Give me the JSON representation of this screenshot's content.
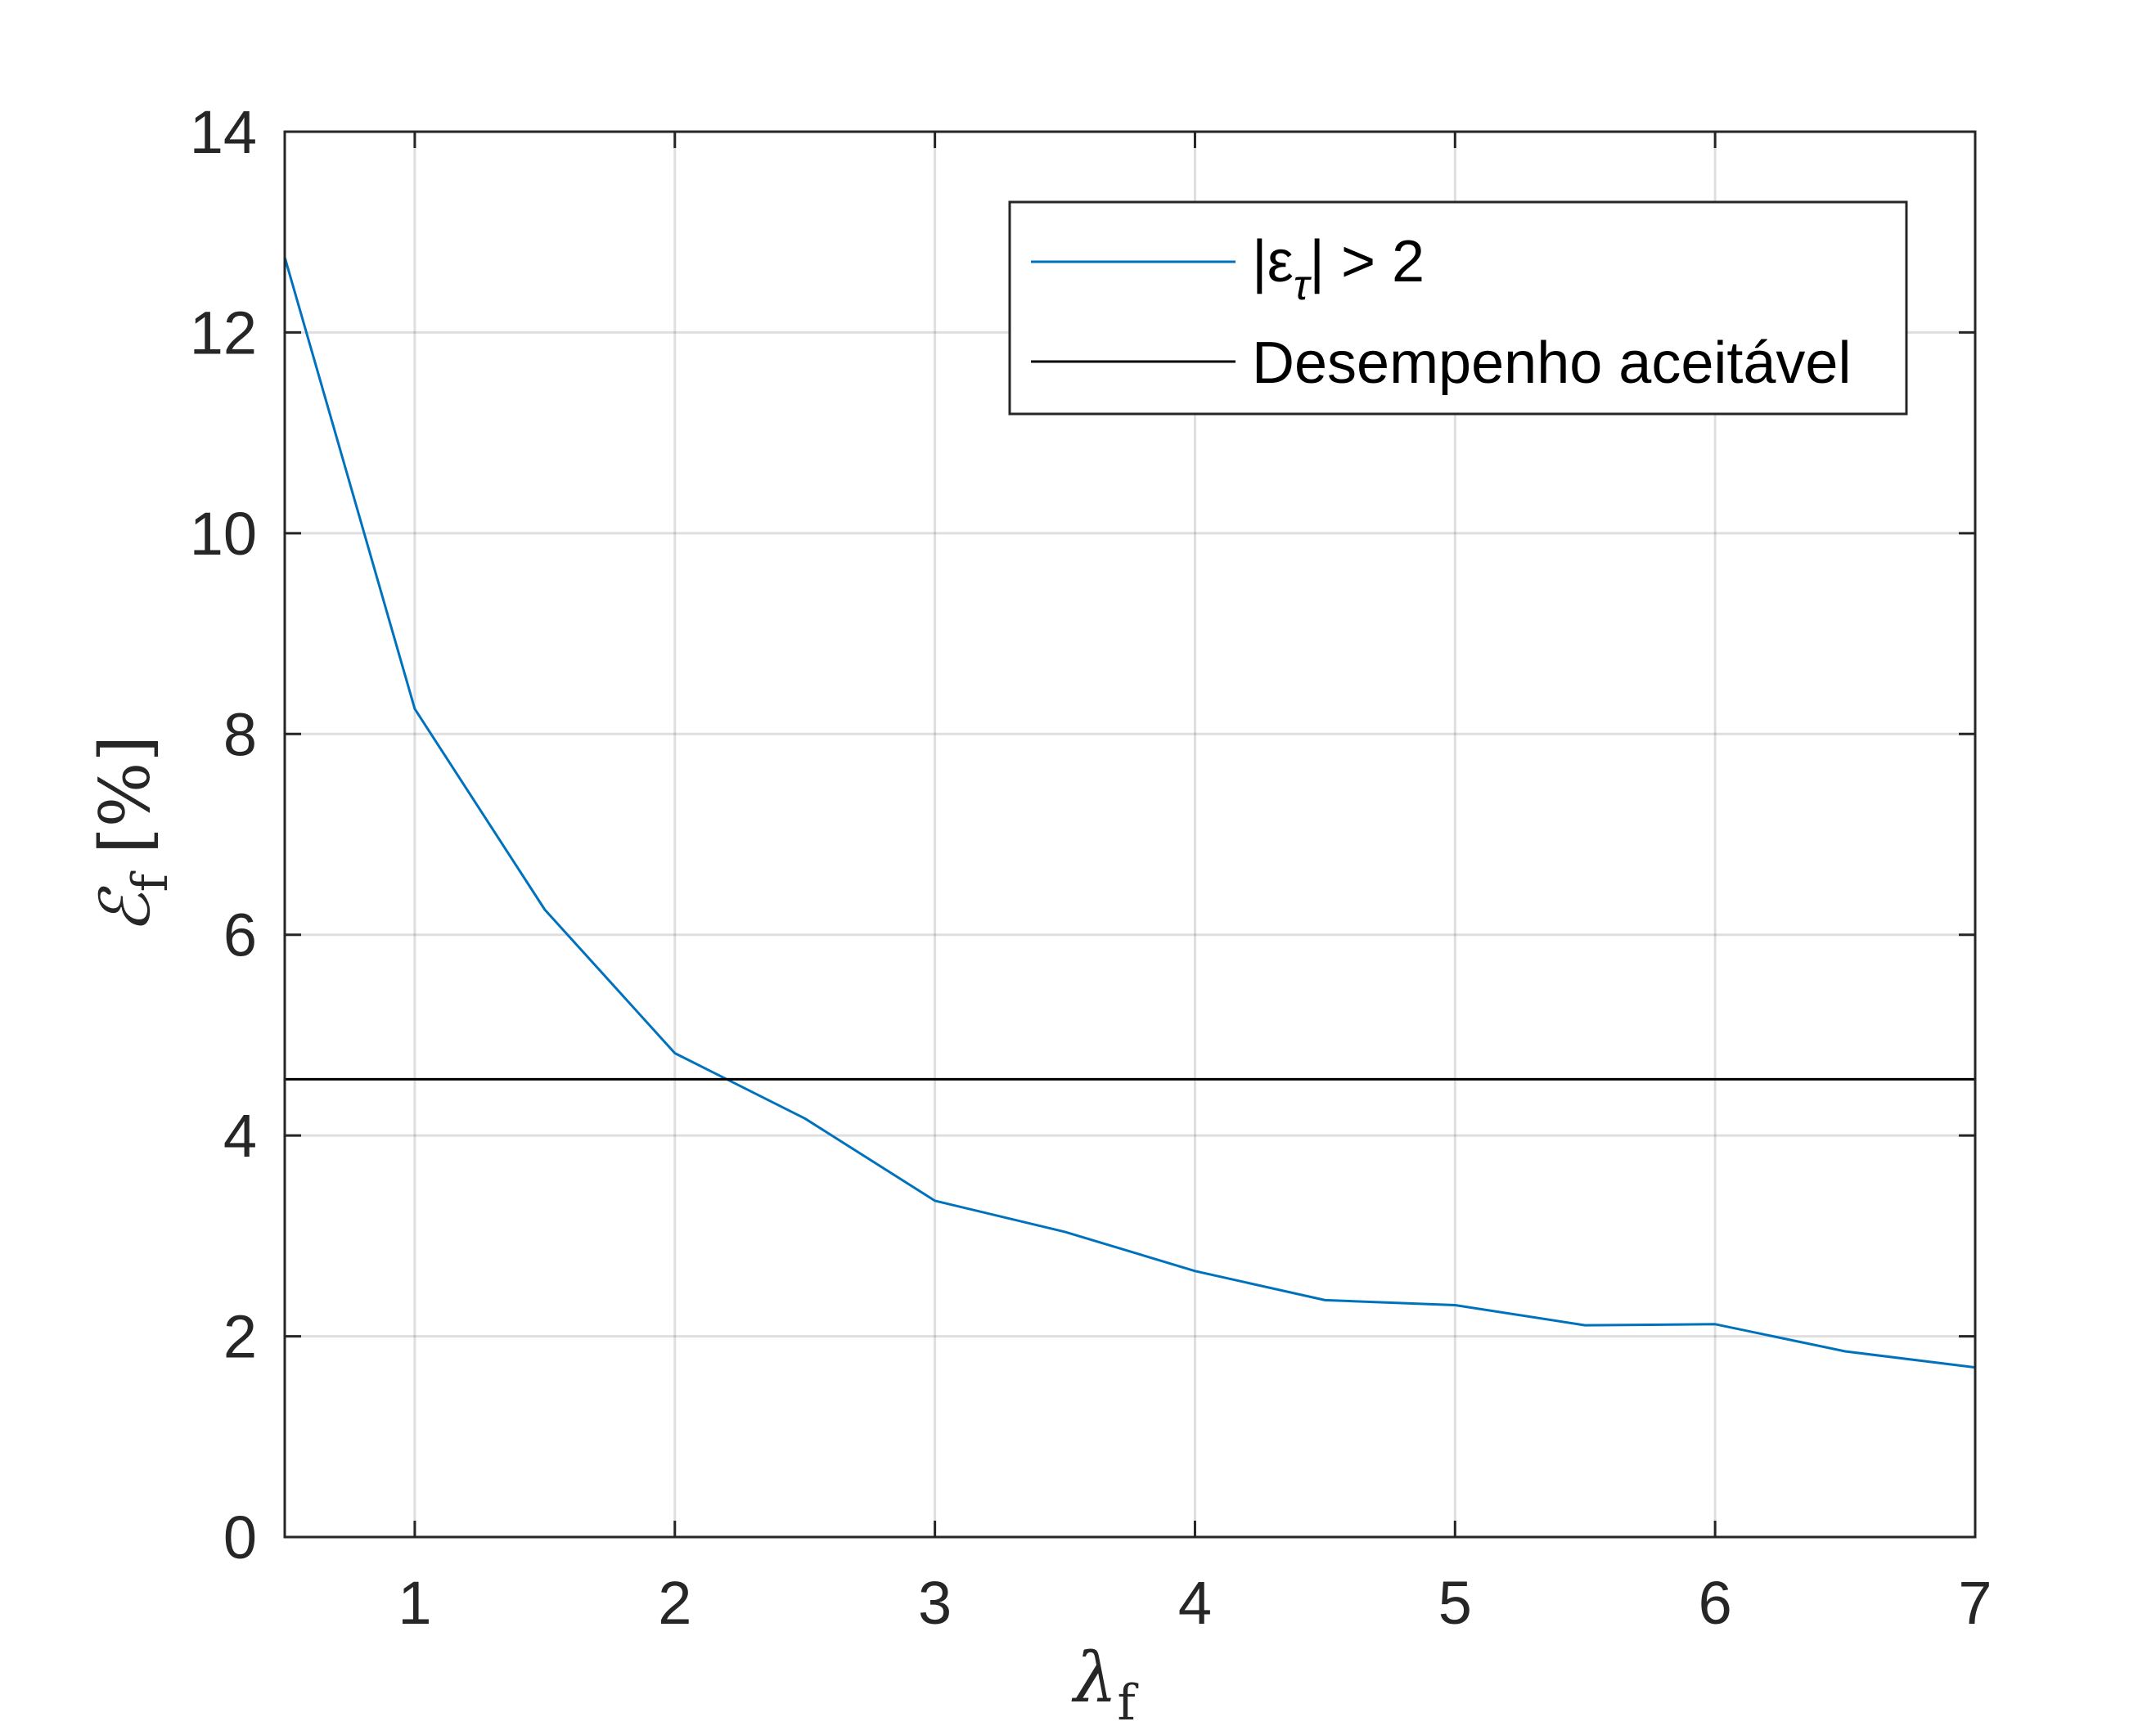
{
  "chart_data": {
    "type": "line",
    "title": "",
    "xlabel": {
      "symbol": "λ",
      "subscript": "f"
    },
    "ylabel": {
      "symbol": "ℰ",
      "subscript": "f",
      "unit": "[%]"
    },
    "xlim": [
      0.5,
      7
    ],
    "ylim": [
      0,
      14
    ],
    "xticks": [
      1,
      2,
      3,
      4,
      5,
      6,
      7
    ],
    "yticks": [
      0,
      2,
      4,
      6,
      8,
      10,
      12,
      14
    ],
    "grid": true,
    "legend_position": "top-right",
    "series": [
      {
        "name": "|ε_τ| > 2",
        "legend": {
          "prefix": "|ε",
          "subscript": "τ",
          "suffix": "| > 2"
        },
        "color": "#0072BD",
        "x": [
          0.5,
          1.0,
          1.5,
          2.0,
          2.5,
          3.0,
          3.5,
          4.0,
          4.5,
          5.0,
          5.5,
          6.0,
          6.5,
          7.0
        ],
        "y": [
          12.75,
          8.25,
          6.25,
          4.82,
          4.17,
          3.35,
          3.04,
          2.65,
          2.36,
          2.31,
          2.11,
          2.12,
          1.85,
          1.69
        ]
      },
      {
        "name": "Desempenho aceitável",
        "color": "#000000",
        "x": [
          0.5,
          7.0
        ],
        "y": [
          4.56,
          4.56
        ]
      }
    ]
  }
}
